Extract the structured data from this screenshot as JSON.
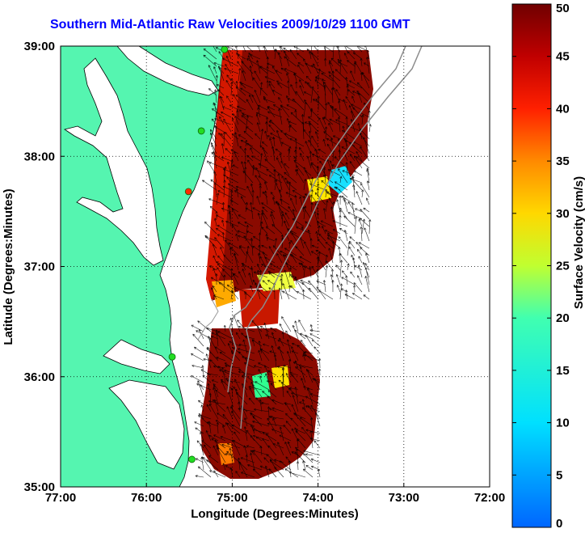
{
  "title": "Southern Mid-Atlantic Raw Velocities 2009/10/29 1100 GMT",
  "x_axis": {
    "label": "Longitude (Degrees:Minutes)",
    "range": [
      -77,
      -72
    ],
    "ticks": [
      {
        "value": -77,
        "label": "77:00"
      },
      {
        "value": -76,
        "label": "76:00"
      },
      {
        "value": -75,
        "label": "75:00"
      },
      {
        "value": -74,
        "label": "74:00"
      },
      {
        "value": -73,
        "label": "73:00"
      },
      {
        "value": -72,
        "label": "72:00"
      }
    ]
  },
  "y_axis": {
    "label": "Latitude (Degrees:Minutes)",
    "range": [
      35,
      39
    ],
    "ticks": [
      {
        "value": 35,
        "label": "35:00"
      },
      {
        "value": 36,
        "label": "36:00"
      },
      {
        "value": 37,
        "label": "37:00"
      },
      {
        "value": 38,
        "label": "38:00"
      },
      {
        "value": 39,
        "label": "39:00"
      }
    ]
  },
  "colorbar": {
    "label": "Surface Velocity (cm/s)",
    "range": [
      0,
      50
    ],
    "ticks": [
      0,
      5,
      10,
      15,
      20,
      25,
      30,
      35,
      40,
      45,
      50
    ]
  },
  "colors": {
    "land": "#55f5b0",
    "title": "#0000ff",
    "station": "#22dd22",
    "station_alt": "#ff2a00"
  },
  "stations": [
    {
      "lon": -75.09,
      "lat": 38.97,
      "color": "station"
    },
    {
      "lon": -75.36,
      "lat": 38.23,
      "color": "station"
    },
    {
      "lon": -75.51,
      "lat": 37.68,
      "color": "station_alt"
    },
    {
      "lon": -75.7,
      "lat": 36.18,
      "color": "station"
    },
    {
      "lon": -75.47,
      "lat": 35.25,
      "color": "station"
    }
  ]
}
